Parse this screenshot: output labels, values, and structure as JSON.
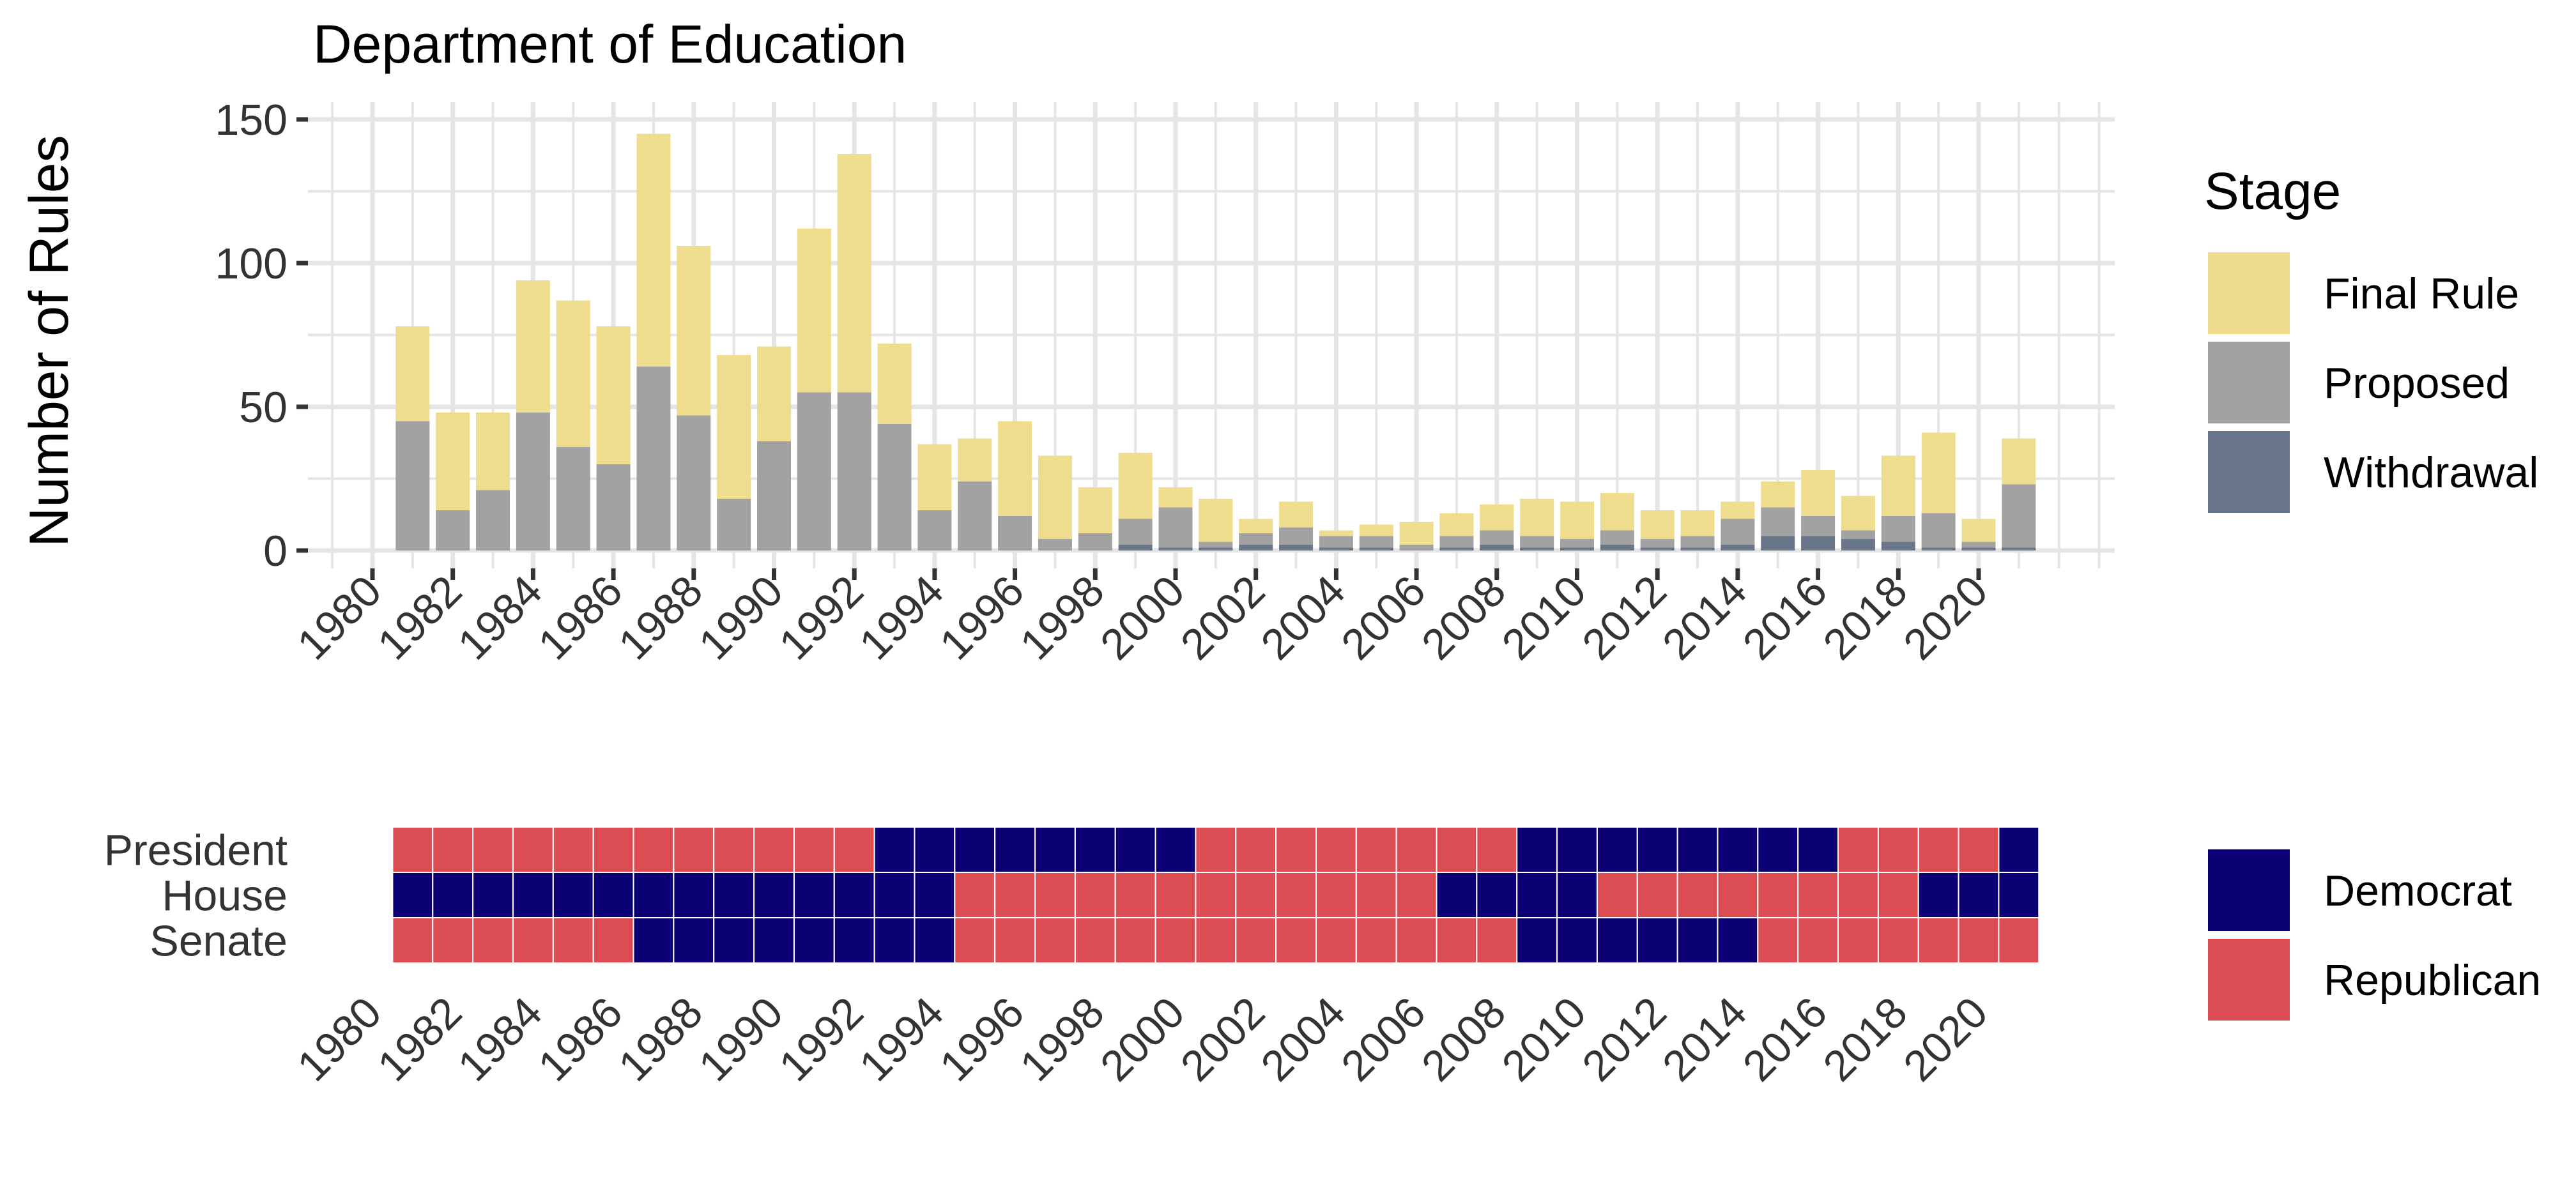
{
  "colors": {
    "final_rule": "#EEDC8C",
    "proposed": "#A0A0A0",
    "withdrawal": "#677489",
    "democrat": "#0B0175",
    "republican": "#DB4C53",
    "grid": "#E5E5E5",
    "text": "#333333"
  },
  "chart_data": [
    {
      "type": "bar",
      "stacked": true,
      "title": "Department of Education",
      "ylabel": "Number of Rules",
      "xlabel": "",
      "ylim": [
        0,
        150
      ],
      "y_ticks": [
        0,
        50,
        100,
        150
      ],
      "x_ticks": [
        1980,
        1982,
        1984,
        1986,
        1988,
        1990,
        1992,
        1994,
        1996,
        1998,
        2000,
        2002,
        2004,
        2006,
        2008,
        2010,
        2012,
        2014,
        2016,
        2018,
        2020
      ],
      "grid": true,
      "legend": {
        "title": "Stage",
        "position": "right"
      },
      "categories": [
        1981,
        1982,
        1983,
        1984,
        1985,
        1986,
        1987,
        1988,
        1989,
        1990,
        1991,
        1992,
        1993,
        1994,
        1995,
        1996,
        1997,
        1998,
        1999,
        2000,
        2001,
        2002,
        2003,
        2004,
        2005,
        2006,
        2007,
        2008,
        2009,
        2010,
        2011,
        2012,
        2013,
        2014,
        2015,
        2016,
        2017,
        2018,
        2019,
        2020,
        2021
      ],
      "series": [
        {
          "name": "Final Rule",
          "key": "final_rule",
          "values": [
            33,
            34,
            27,
            46,
            51,
            48,
            81,
            59,
            50,
            33,
            57,
            83,
            28,
            23,
            15,
            33,
            29,
            16,
            23,
            7,
            15,
            5,
            9,
            2,
            4,
            8,
            8,
            9,
            13,
            13,
            13,
            10,
            9,
            6,
            9,
            16,
            12,
            21,
            28,
            8,
            16
          ]
        },
        {
          "name": "Proposed",
          "key": "proposed",
          "values": [
            45,
            14,
            21,
            48,
            36,
            30,
            64,
            47,
            18,
            38,
            55,
            55,
            44,
            14,
            24,
            12,
            4,
            6,
            9,
            14,
            2,
            4,
            6,
            4,
            4,
            2,
            4,
            5,
            4,
            3,
            5,
            3,
            4,
            9,
            10,
            7,
            3,
            9,
            12,
            2,
            22
          ]
        },
        {
          "name": "Withdrawal",
          "key": "withdrawal",
          "values": [
            0,
            0,
            0,
            0,
            0,
            0,
            0,
            0,
            0,
            0,
            0,
            0,
            0,
            0,
            0,
            0,
            0,
            0,
            2,
            1,
            1,
            2,
            2,
            1,
            1,
            0,
            1,
            2,
            1,
            1,
            2,
            1,
            1,
            2,
            5,
            5,
            4,
            3,
            1,
            1,
            1
          ]
        }
      ]
    },
    {
      "type": "heatmap",
      "rows": [
        "President",
        "House",
        "Senate"
      ],
      "x_ticks": [
        1980,
        1982,
        1984,
        1986,
        1988,
        1990,
        1992,
        1994,
        1996,
        1998,
        2000,
        2002,
        2004,
        2006,
        2008,
        2010,
        2012,
        2014,
        2016,
        2018,
        2020
      ],
      "years": [
        1981,
        1982,
        1983,
        1984,
        1985,
        1986,
        1987,
        1988,
        1989,
        1990,
        1991,
        1992,
        1993,
        1994,
        1995,
        1996,
        1997,
        1998,
        1999,
        2000,
        2001,
        2002,
        2003,
        2004,
        2005,
        2006,
        2007,
        2008,
        2009,
        2010,
        2011,
        2012,
        2013,
        2014,
        2015,
        2016,
        2017,
        2018,
        2019,
        2020,
        2021
      ],
      "legend": {
        "entries": [
          "Democrat",
          "Republican"
        ],
        "position": "right"
      },
      "values": {
        "President": "RRRRRRRRRRRRDDDDDDDDRRRRRRRRDDDDDDDDRRRRD",
        "House": "DDDDDDDDDDDDDDRRRRRRRRRRRRDDDDRRRRRRRRDDD",
        "Senate": "RRRRRRDDDDDDDDRRRRRRRRRRRRRRDDDDDDRRRRRRR"
      },
      "party_codes": {
        "D": "Democrat",
        "R": "Republican"
      }
    }
  ]
}
